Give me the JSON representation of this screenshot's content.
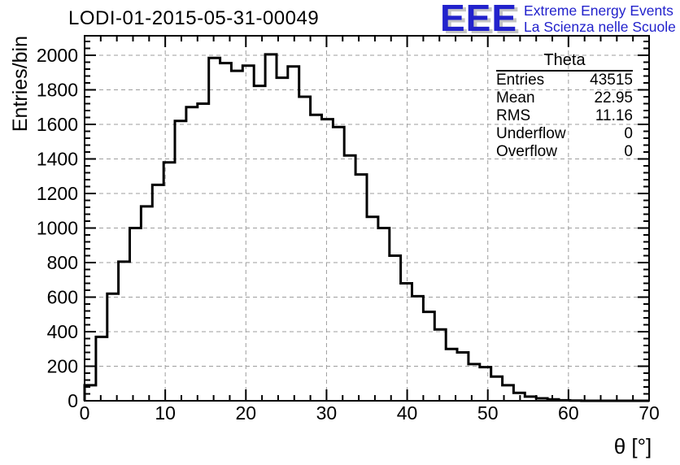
{
  "title": "LODI-01-2015-05-31-00049",
  "logo": {
    "acronym": "EEE",
    "line1": "Extreme Energy Events",
    "line2": "La Scienza nelle Scuole",
    "blue": "#2222cc",
    "shadow_gray": "#c4c4c4"
  },
  "stats": {
    "title": "Theta",
    "rows": [
      {
        "label": "Entries",
        "value": "43515"
      },
      {
        "label": "Mean",
        "value": "22.95"
      },
      {
        "label": "RMS",
        "value": "11.16"
      },
      {
        "label": "Underflow",
        "value": "0"
      },
      {
        "label": "Overflow",
        "value": "0"
      }
    ]
  },
  "chart_data": {
    "type": "bar",
    "subtype": "step-histogram",
    "series_name": "Theta",
    "title": "LODI-01-2015-05-31-00049",
    "xlabel": "θ [°]",
    "ylabel": "Entries/bin",
    "xlim": [
      0,
      70
    ],
    "ylim": [
      0,
      2112
    ],
    "bin_start": 0,
    "bin_width": 1.4,
    "n_bins": 50,
    "values": [
      90,
      370,
      620,
      805,
      1000,
      1125,
      1250,
      1380,
      1620,
      1700,
      1720,
      1985,
      1955,
      1910,
      1940,
      1823,
      2005,
      1870,
      1935,
      1760,
      1655,
      1630,
      1585,
      1420,
      1310,
      1065,
      1000,
      840,
      680,
      605,
      515,
      413,
      300,
      280,
      212,
      195,
      140,
      90,
      46,
      24,
      14,
      8,
      3,
      1,
      0,
      0,
      0,
      0,
      0,
      0
    ],
    "x_major_ticks": [
      0,
      10,
      20,
      30,
      40,
      50,
      60,
      70
    ],
    "x_minor_step": 2,
    "y_major_ticks": [
      0,
      200,
      400,
      600,
      800,
      1000,
      1200,
      1400,
      1600,
      1800,
      2000
    ],
    "y_minor_step": 40,
    "grid": "dashed on major ticks",
    "legend_position": "none",
    "line_color": "#000000",
    "grid_color": "#9e9e9e"
  }
}
